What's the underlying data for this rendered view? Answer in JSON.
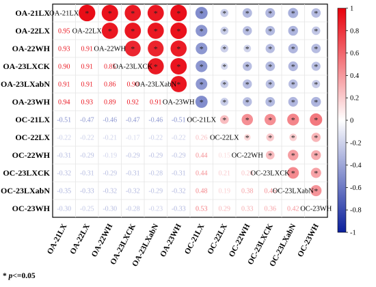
{
  "chart_data": {
    "type": "heatmap",
    "style": "correlation-matrix",
    "variables": [
      "OA-21LX",
      "OA-22LX",
      "OA-22WH",
      "OA-23LXCK",
      "OA-23LXabN",
      "OA-23WH",
      "OC-21LX",
      "OC-22LX",
      "OC-22WH",
      "OC-23LXCK",
      "OC-23LXabN",
      "OC-23WH"
    ],
    "lower_triangle_values": [
      [],
      [
        0.95
      ],
      [
        0.93,
        0.91
      ],
      [
        0.9,
        0.91,
        0.85
      ],
      [
        0.91,
        0.91,
        0.86,
        0.9
      ],
      [
        0.94,
        0.93,
        0.89,
        0.92,
        0.91
      ],
      [
        -0.51,
        -0.47,
        -0.46,
        -0.47,
        -0.46,
        -0.51
      ],
      [
        -0.22,
        -0.22,
        -0.21,
        -0.17,
        -0.22,
        -0.22,
        0.26
      ],
      [
        -0.31,
        -0.29,
        -0.19,
        -0.29,
        -0.29,
        -0.29,
        0.44,
        0.15
      ],
      [
        -0.32,
        -0.31,
        -0.29,
        -0.31,
        -0.28,
        -0.31,
        0.44,
        0.21,
        0.26
      ],
      [
        -0.35,
        -0.33,
        -0.32,
        -0.32,
        -0.29,
        -0.32,
        0.48,
        0.19,
        0.38,
        0.46
      ],
      [
        -0.3,
        -0.25,
        -0.3,
        -0.28,
        -0.23,
        -0.33,
        0.53,
        0.29,
        0.33,
        0.36,
        0.42
      ]
    ],
    "upper_triangle": "circles sized and colored by correlation; * marks p<=0.05",
    "colorbar": {
      "range": [
        -1,
        1
      ],
      "ticks": [
        "1",
        "0.8",
        "0.6",
        "0.4",
        "0.2",
        "0",
        "-0.2",
        "-0.4",
        "-0.6",
        "-0.8",
        "-1"
      ],
      "colors": {
        "negative": "#0a1f9c",
        "zero": "#ffffff",
        "positive": "#e8000b"
      }
    },
    "significance_marker": "*",
    "footnote": {
      "symbol": "* ",
      "variable": "p",
      "condition": "<=0.05"
    }
  }
}
